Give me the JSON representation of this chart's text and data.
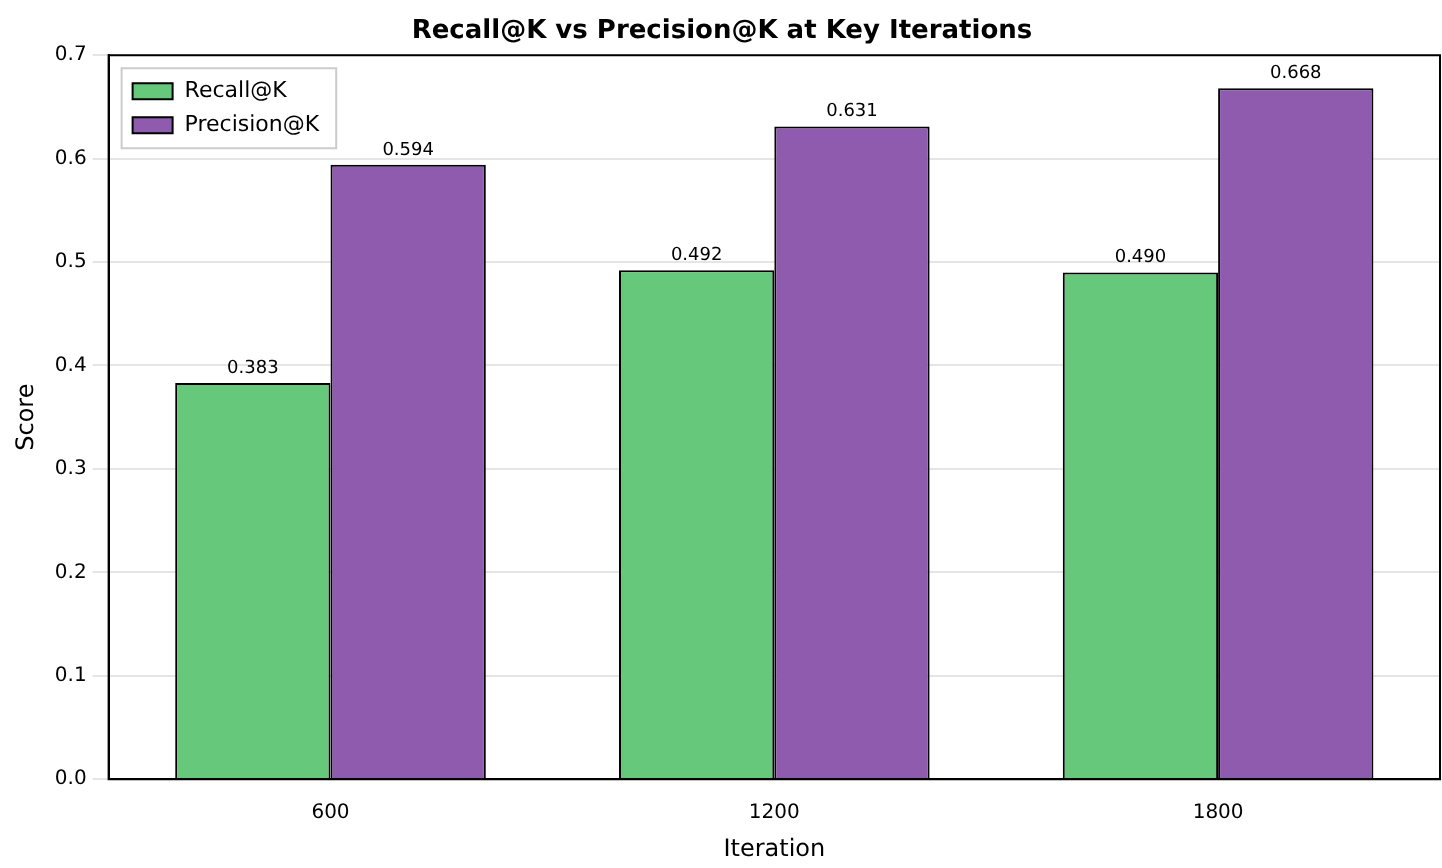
{
  "chart_data": {
    "type": "bar",
    "title": "Recall@K vs Precision@K at Key Iterations",
    "xlabel": "Iteration",
    "ylabel": "Score",
    "categories": [
      "600",
      "1200",
      "1800"
    ],
    "series": [
      {
        "name": "Recall@K",
        "color": "#66c87a",
        "values": [
          0.383,
          0.492,
          0.49
        ],
        "value_labels": [
          "0.383",
          "0.492",
          "0.490"
        ]
      },
      {
        "name": "Precision@K",
        "color": "#8e5bae",
        "values": [
          0.594,
          0.631,
          0.668
        ],
        "value_labels": [
          "0.594",
          "0.631",
          "0.668"
        ]
      }
    ],
    "ylim": [
      0,
      0.7
    ],
    "yticks": [
      {
        "value": 0,
        "label": "0.0"
      },
      {
        "value": 0.1,
        "label": "0.1"
      },
      {
        "value": 0.2,
        "label": "0.2"
      },
      {
        "value": 0.3,
        "label": "0.3"
      },
      {
        "value": 0.4,
        "label": "0.4"
      },
      {
        "value": 0.5,
        "label": "0.5"
      },
      {
        "value": 0.6,
        "label": "0.6"
      },
      {
        "value": 0.7,
        "label": "0.7"
      }
    ],
    "grid": "y",
    "legend": "top left"
  }
}
